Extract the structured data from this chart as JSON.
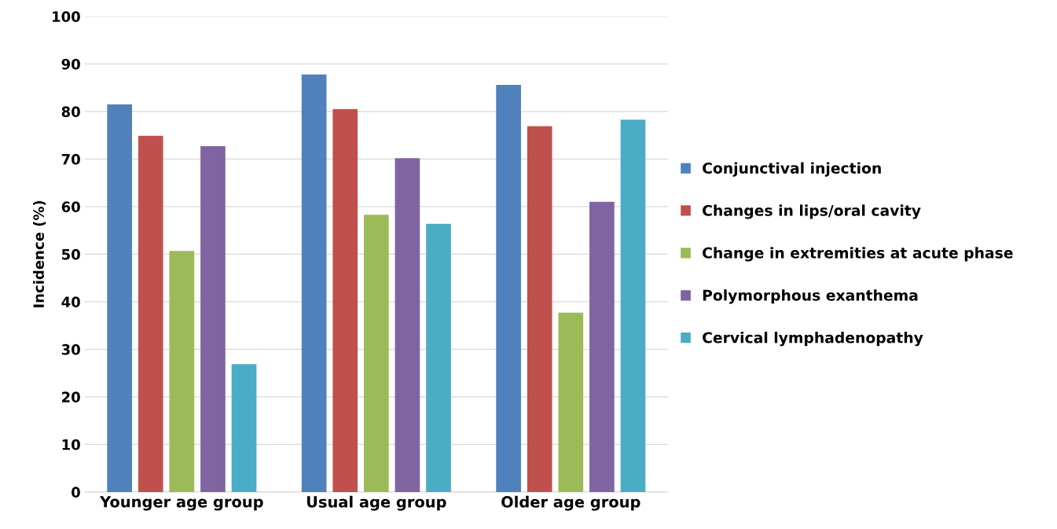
{
  "chart_data": {
    "type": "bar",
    "ylabel": "Incidence (%)",
    "categories": [
      "Younger age group",
      "Usual age group",
      "Older age group"
    ],
    "series": [
      {
        "name": "Conjunctival injection",
        "color": "#4f81bd",
        "values": [
          81.5,
          87.8,
          85.6
        ]
      },
      {
        "name": "Changes in lips/oral cavity",
        "color": "#c0504d",
        "values": [
          74.9,
          80.5,
          76.9
        ]
      },
      {
        "name": "Change in extremities at acute phase",
        "color": "#9bbb59",
        "values": [
          50.7,
          58.3,
          37.7
        ]
      },
      {
        "name": "Polymorphous exanthema",
        "color": "#8064a2",
        "values": [
          72.7,
          70.2,
          61.0
        ]
      },
      {
        "name": "Cervical lymphadenopathy",
        "color": "#4bacc6",
        "values": [
          26.9,
          56.4,
          78.3
        ]
      }
    ],
    "ylim": [
      0,
      100
    ],
    "yticks": [
      0,
      10,
      20,
      30,
      40,
      50,
      60,
      70,
      80,
      90,
      100
    ],
    "grid": "y",
    "legend": "right"
  }
}
